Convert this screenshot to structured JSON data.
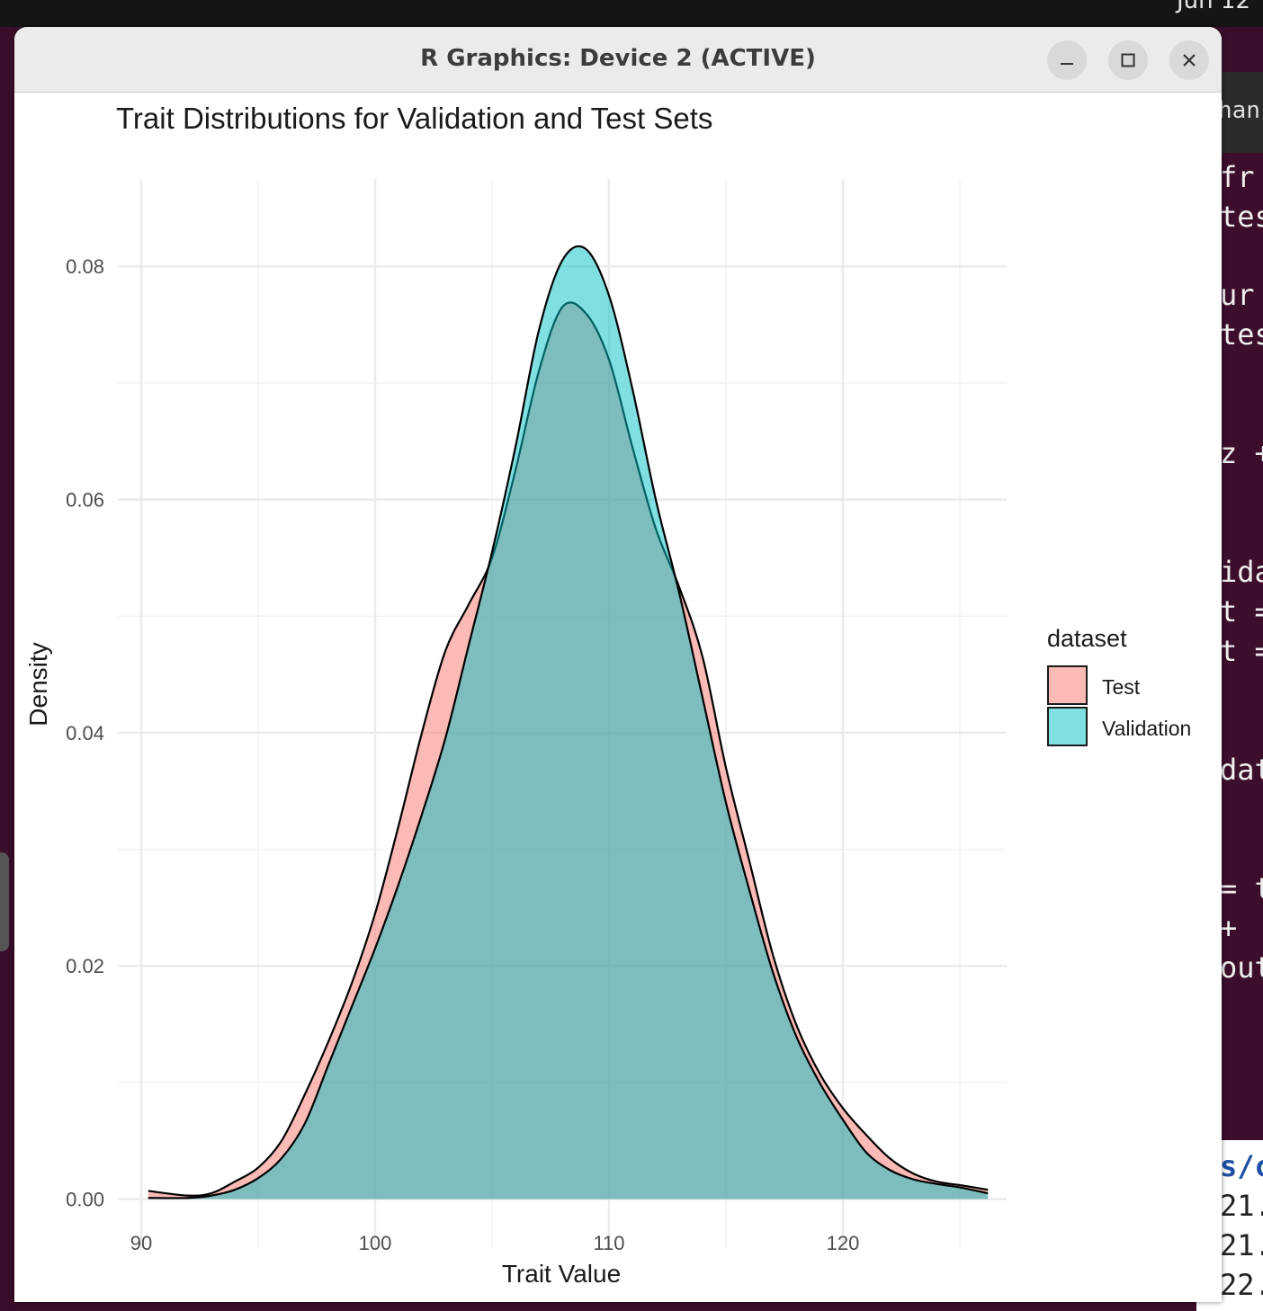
{
  "window": {
    "title": "R Graphics: Device 2 (ACTIVE)",
    "minimize_icon": "minimize-icon",
    "maximize_icon": "maximize-icon",
    "close_icon": "close-icon"
  },
  "topbar": {
    "clock": "Jun 12"
  },
  "terminal": {
    "tab_text": "han",
    "lines": [
      "fr",
      "tes",
      "",
      "ur",
      "tes",
      "",
      "",
      "z +",
      "",
      "",
      "ida",
      "t =",
      "t =",
      "",
      "",
      "dat",
      "",
      "",
      "= t",
      "+",
      "out"
    ],
    "lower_lines": [
      "s/c",
      "21.",
      "21.",
      "22."
    ]
  },
  "chart_data": {
    "type": "area",
    "title": "Trait Distributions for Validation and Test Sets",
    "xlabel": "Trait Value",
    "ylabel": "Density",
    "xlim": [
      89,
      127
    ],
    "ylim": [
      -0.0042,
      0.0875
    ],
    "x_ticks": [
      90,
      100,
      110,
      120
    ],
    "y_ticks": [
      0.0,
      0.02,
      0.04,
      0.06,
      0.08
    ],
    "x_tick_labels": [
      "90",
      "100",
      "110",
      "120"
    ],
    "y_tick_labels": [
      "0.00",
      "0.02",
      "0.04",
      "0.06",
      "0.08"
    ],
    "grid": true,
    "legend": {
      "title": "dataset",
      "position": "right"
    },
    "series": [
      {
        "name": "Test",
        "color": "#F8766D",
        "x": [
          90.3,
          92,
          93,
          94,
          95,
          96,
          97,
          98,
          99,
          100,
          101,
          102,
          103,
          104,
          105,
          106,
          107,
          108,
          109,
          110,
          111,
          112,
          113,
          114,
          115,
          116,
          117,
          118,
          119,
          120,
          121,
          122,
          123,
          124,
          125,
          126.2
        ],
        "values": [
          0.0007,
          0.0003,
          0.0005,
          0.0015,
          0.0027,
          0.005,
          0.009,
          0.0135,
          0.0185,
          0.0245,
          0.032,
          0.04,
          0.047,
          0.051,
          0.055,
          0.0625,
          0.071,
          0.0765,
          0.076,
          0.072,
          0.0645,
          0.0575,
          0.0525,
          0.0465,
          0.037,
          0.029,
          0.021,
          0.015,
          0.0108,
          0.0078,
          0.0055,
          0.0035,
          0.0022,
          0.0015,
          0.0012,
          0.0008
        ]
      },
      {
        "name": "Validation",
        "color": "#00BFC4",
        "x": [
          90.3,
          92,
          93,
          94,
          95,
          96,
          97,
          98,
          99,
          100,
          101,
          102,
          103,
          104,
          105,
          106,
          107,
          108,
          109,
          110,
          111,
          112,
          113,
          114,
          115,
          116,
          117,
          118,
          119,
          120,
          121,
          122,
          123,
          124,
          125,
          126.2
        ],
        "values": [
          0.0001,
          0.0001,
          0.0003,
          0.0008,
          0.0018,
          0.0035,
          0.0065,
          0.0115,
          0.0165,
          0.0215,
          0.027,
          0.033,
          0.0395,
          0.0475,
          0.0555,
          0.0645,
          0.0745,
          0.0805,
          0.0815,
          0.0775,
          0.0695,
          0.06,
          0.052,
          0.043,
          0.034,
          0.0265,
          0.0195,
          0.014,
          0.01,
          0.0068,
          0.004,
          0.0025,
          0.0017,
          0.0013,
          0.001,
          0.0005
        ]
      }
    ]
  }
}
